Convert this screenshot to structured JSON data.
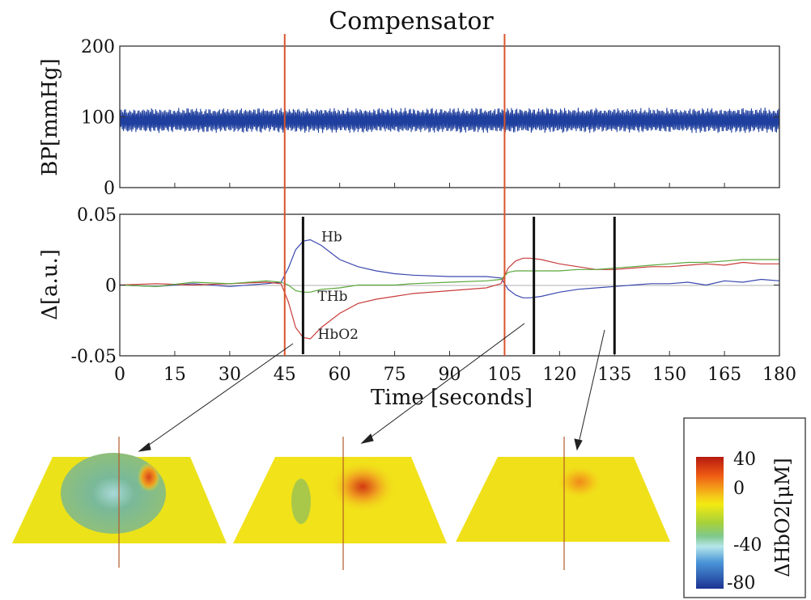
{
  "title": "Compensator",
  "chart_data": [
    {
      "type": "line",
      "ylabel": "BP[mmHg]",
      "xlim": [
        0,
        180
      ],
      "ylim": [
        0,
        200
      ],
      "yticks": [
        "0",
        "100",
        "200"
      ],
      "series": [
        {
          "name": "",
          "color": "#1f3f9e",
          "mean": 95,
          "amplitude": 18
        }
      ]
    },
    {
      "type": "line",
      "ylabel": "Δ[a.u.]",
      "xlabel": "Time [seconds]",
      "xlim": [
        0,
        180
      ],
      "ylim": [
        -0.05,
        0.05
      ],
      "xticks": [
        "0",
        "15",
        "30",
        "45",
        "60",
        "75",
        "90",
        "105",
        "120",
        "135",
        "150",
        "165",
        "180"
      ],
      "yticks": [
        "-0.05",
        "0",
        "0.05"
      ],
      "series": [
        {
          "name": "Hb",
          "color": "#3b48b0",
          "x": [
            0,
            10,
            20,
            30,
            40,
            44,
            46,
            48,
            50,
            52,
            55,
            60,
            65,
            70,
            75,
            80,
            90,
            100,
            104,
            106,
            108,
            110,
            112,
            115,
            120,
            125,
            130,
            135,
            140,
            145,
            150,
            155,
            160,
            165,
            170,
            175,
            180
          ],
          "y": [
            0,
            -0.001,
            0.001,
            -0.001,
            0.001,
            0.002,
            0.012,
            0.025,
            0.031,
            0.032,
            0.028,
            0.018,
            0.013,
            0.01,
            0.008,
            0.007,
            0.006,
            0.006,
            0.005,
            -0.003,
            -0.007,
            -0.009,
            -0.009,
            -0.008,
            -0.005,
            -0.003,
            -0.002,
            -0.001,
            0,
            0.001,
            0.001,
            0.002,
            0,
            0.003,
            0.002,
            0.004,
            0.003
          ]
        },
        {
          "name": "HbO2",
          "color": "#c93c3c",
          "x": [
            0,
            10,
            20,
            30,
            40,
            44,
            46,
            48,
            50,
            52,
            55,
            60,
            65,
            70,
            75,
            80,
            90,
            100,
            104,
            106,
            108,
            110,
            112,
            115,
            120,
            125,
            130,
            135,
            140,
            145,
            150,
            155,
            160,
            165,
            170,
            175,
            180
          ],
          "y": [
            0,
            0.001,
            0,
            0.001,
            0.002,
            0.001,
            -0.012,
            -0.03,
            -0.037,
            -0.038,
            -0.03,
            -0.02,
            -0.013,
            -0.01,
            -0.008,
            -0.006,
            -0.004,
            -0.002,
            0.001,
            0.012,
            0.017,
            0.019,
            0.019,
            0.018,
            0.015,
            0.013,
            0.011,
            0.011,
            0.012,
            0.013,
            0.013,
            0.014,
            0.015,
            0.014,
            0.016,
            0.015,
            0.015
          ]
        },
        {
          "name": "THb",
          "color": "#5aa83a",
          "x": [
            0,
            10,
            20,
            30,
            40,
            44,
            46,
            48,
            50,
            52,
            55,
            60,
            65,
            70,
            75,
            80,
            90,
            100,
            104,
            106,
            108,
            110,
            112,
            115,
            120,
            125,
            130,
            135,
            140,
            145,
            150,
            155,
            160,
            165,
            170,
            175,
            180
          ],
          "y": [
            0,
            -0.001,
            0.002,
            0.001,
            0.003,
            0.002,
            0,
            -0.004,
            -0.005,
            -0.005,
            -0.003,
            -0.002,
            0,
            0,
            0,
            0.001,
            0.002,
            0.003,
            0.004,
            0.009,
            0.01,
            0.01,
            0.01,
            0.01,
            0.01,
            0.011,
            0.011,
            0.012,
            0.013,
            0.014,
            0.015,
            0.016,
            0.016,
            0.017,
            0.018,
            0.018,
            0.018
          ]
        }
      ],
      "series_labels": [
        "Hb",
        "THb",
        "HbO2"
      ],
      "red_markers_x": [
        45,
        105
      ],
      "black_markers_x": [
        50,
        113,
        135
      ]
    }
  ],
  "maps": {
    "count": 3,
    "colorbar_label": "ΔHbO2[μM]",
    "colorbar_ticks": [
      "40",
      "0",
      "-40",
      "-80"
    ],
    "colorbar_range": [
      -80,
      40
    ],
    "colorbar_colors": [
      "#cc1f10",
      "#f07a14",
      "#f5e60f",
      "#8cc63f",
      "#a8e0e8",
      "#3a86d4",
      "#1e3a9a"
    ]
  }
}
